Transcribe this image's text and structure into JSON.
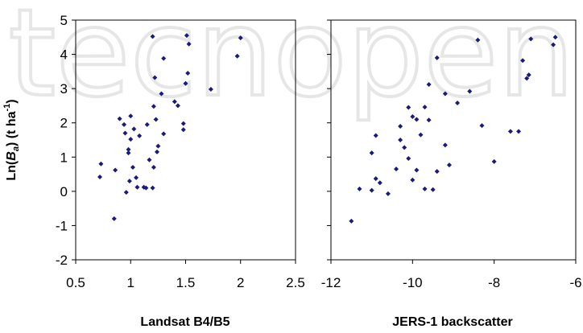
{
  "colors": {
    "marker": "#1a1a7a",
    "axis": "#000000",
    "watermark": "#e6e6e6"
  },
  "watermark": {
    "text": "tecnopen"
  },
  "chart_data": [
    {
      "type": "scatter",
      "xlabel": "Landsat B4/B5",
      "ylabel": "Ln(Ba) (t ha-1)",
      "ylabel_parts": {
        "a": "Ln(",
        "b": "B",
        "c": "a",
        "d": ") (t ha",
        "e": "-1",
        "f": ")"
      },
      "xlim": [
        0.5,
        2.5
      ],
      "ylim": [
        -2,
        5
      ],
      "xticks": [
        "0.5",
        "1",
        "1.5",
        "2",
        "2.5"
      ],
      "yticks": [
        "-2",
        "-1",
        "0",
        "1",
        "2",
        "3",
        "4",
        "5"
      ],
      "grid": false,
      "points": [
        [
          0.72,
          0.42
        ],
        [
          0.73,
          0.8
        ],
        [
          0.85,
          -0.8
        ],
        [
          0.86,
          0.62
        ],
        [
          0.9,
          2.12
        ],
        [
          0.94,
          1.95
        ],
        [
          0.95,
          1.7
        ],
        [
          0.96,
          -0.03
        ],
        [
          0.98,
          1.22
        ],
        [
          0.98,
          1.12
        ],
        [
          0.99,
          0.3
        ],
        [
          1.0,
          2.2
        ],
        [
          1.0,
          1.52
        ],
        [
          1.02,
          0.7
        ],
        [
          1.03,
          1.82
        ],
        [
          1.05,
          0.4
        ],
        [
          1.06,
          0.12
        ],
        [
          1.08,
          1.62
        ],
        [
          1.12,
          0.12
        ],
        [
          1.14,
          0.1
        ],
        [
          1.15,
          1.95
        ],
        [
          1.17,
          0.92
        ],
        [
          1.2,
          0.1
        ],
        [
          1.2,
          4.52
        ],
        [
          1.21,
          2.48
        ],
        [
          1.21,
          0.7
        ],
        [
          1.22,
          3.32
        ],
        [
          1.23,
          2.1
        ],
        [
          1.24,
          1.15
        ],
        [
          1.25,
          1.32
        ],
        [
          1.28,
          2.85
        ],
        [
          1.3,
          3.88
        ],
        [
          1.3,
          1.68
        ],
        [
          1.4,
          2.62
        ],
        [
          1.43,
          2.5
        ],
        [
          1.48,
          1.8
        ],
        [
          1.48,
          1.98
        ],
        [
          1.5,
          3.15
        ],
        [
          1.51,
          4.55
        ],
        [
          1.52,
          3.45
        ],
        [
          1.53,
          4.3
        ],
        [
          1.73,
          2.98
        ],
        [
          1.97,
          3.95
        ],
        [
          2.0,
          4.48
        ]
      ]
    },
    {
      "type": "scatter",
      "xlabel": "JERS-1 backscatter",
      "xlim": [
        -12,
        -6
      ],
      "ylim": [
        -2,
        5
      ],
      "xticks": [
        "-12",
        "-10",
        "-8",
        "-6"
      ],
      "grid": false,
      "points": [
        [
          -11.5,
          -0.87
        ],
        [
          -11.3,
          0.07
        ],
        [
          -11.0,
          0.03
        ],
        [
          -11.0,
          1.12
        ],
        [
          -10.9,
          1.63
        ],
        [
          -10.9,
          0.37
        ],
        [
          -10.8,
          0.25
        ],
        [
          -10.6,
          -0.07
        ],
        [
          -10.4,
          0.65
        ],
        [
          -10.3,
          1.9
        ],
        [
          -10.3,
          1.5
        ],
        [
          -10.2,
          1.28
        ],
        [
          -10.1,
          0.96
        ],
        [
          -10.1,
          2.45
        ],
        [
          -10.0,
          2.18
        ],
        [
          -10.0,
          0.33
        ],
        [
          -9.9,
          2.1
        ],
        [
          -9.9,
          0.62
        ],
        [
          -9.8,
          1.65
        ],
        [
          -9.7,
          2.46
        ],
        [
          -9.7,
          0.07
        ],
        [
          -9.6,
          3.12
        ],
        [
          -9.6,
          2.08
        ],
        [
          -9.5,
          0.05
        ],
        [
          -9.4,
          3.9
        ],
        [
          -9.4,
          0.58
        ],
        [
          -9.2,
          2.85
        ],
        [
          -9.2,
          1.35
        ],
        [
          -9.1,
          0.77
        ],
        [
          -8.9,
          2.58
        ],
        [
          -8.6,
          2.92
        ],
        [
          -8.4,
          4.42
        ],
        [
          -8.3,
          1.92
        ],
        [
          -8.0,
          0.87
        ],
        [
          -7.6,
          1.75
        ],
        [
          -7.4,
          1.75
        ],
        [
          -7.3,
          3.82
        ],
        [
          -7.2,
          3.3
        ],
        [
          -7.15,
          3.4
        ],
        [
          -7.1,
          4.45
        ],
        [
          -6.55,
          4.28
        ],
        [
          -6.5,
          4.5
        ]
      ]
    }
  ]
}
